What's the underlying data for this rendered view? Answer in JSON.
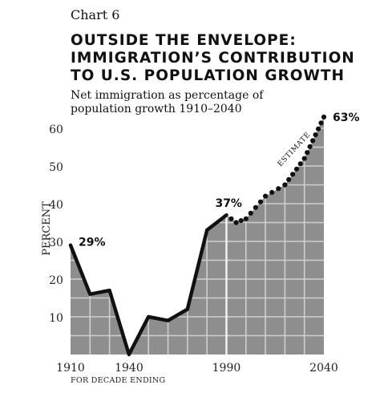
{
  "header": {
    "chart_number": "Chart 6",
    "title_lines": [
      "OUTSIDE THE ENVELOPE:",
      "IMMIGRATION’S CONTRIBUTION",
      "TO U.S. POPULATION GROWTH"
    ],
    "subtitle_lines": [
      "Net immigration as percentage of",
      "population growth 1910–2040"
    ]
  },
  "chart_data": {
    "type": "area",
    "title": "OUTSIDE THE ENVELOPE: IMMIGRATION’S CONTRIBUTION TO U.S. POPULATION GROWTH",
    "subtitle": "Net immigration as percentage of population growth 1910–2040",
    "xlabel": "FOR DECADE ENDING",
    "ylabel": "PERCENT",
    "xlim": [
      1910,
      2040
    ],
    "ylim": [
      0,
      65
    ],
    "grid": true,
    "x_ticks": [
      1910,
      1940,
      1990,
      2040
    ],
    "y_ticks": [
      10,
      20,
      30,
      40,
      50,
      60
    ],
    "series": [
      {
        "style": "solid",
        "x": [
          1910,
          1920,
          1930,
          1940,
          1950,
          1960,
          1970,
          1980,
          1990
        ],
        "y": [
          29,
          16,
          17,
          0,
          10,
          9,
          12,
          33,
          37
        ]
      },
      {
        "name": "ESTIMATE",
        "style": "dotted",
        "x": [
          1990,
          1995,
          2000,
          2010,
          2020,
          2030,
          2040
        ],
        "y": [
          37,
          35,
          36,
          42,
          45,
          52,
          63
        ]
      }
    ],
    "annotations": [
      {
        "text": "29%",
        "x": 1910,
        "y": 29
      },
      {
        "text": "37%",
        "x": 1990,
        "y": 37
      },
      {
        "text": "63%",
        "x": 2040,
        "y": 63
      },
      {
        "text": "ESTIMATE",
        "x": 2026,
        "y": 55
      }
    ],
    "colors": {
      "fill": "#8e8e8e",
      "line": "#111111",
      "grid": "#cfcfcf",
      "divider": "#f2f2f2"
    }
  }
}
